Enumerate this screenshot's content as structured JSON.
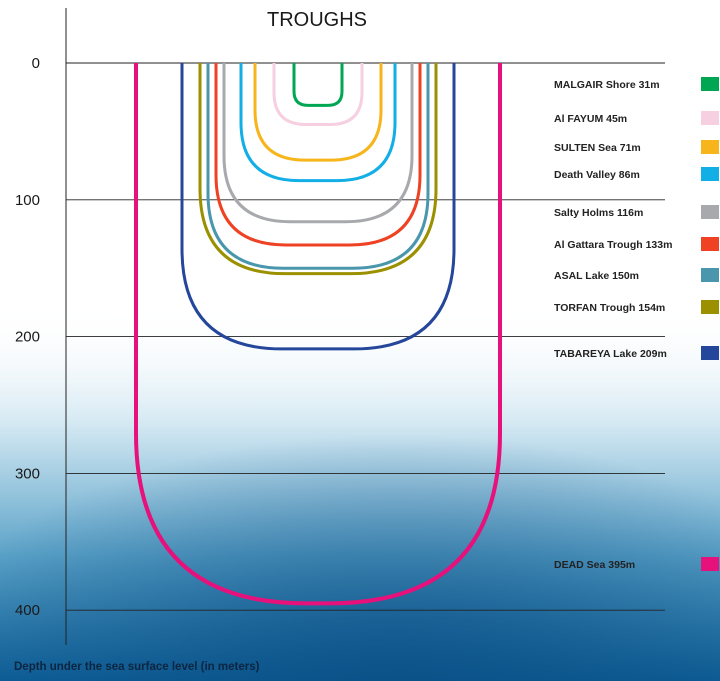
{
  "chart_data": {
    "type": "line",
    "title": "TROUGHS",
    "ylabel": "Depth under the sea surface level (in meters)",
    "y_ticks": [
      "0",
      "100",
      "200",
      "300",
      "400"
    ],
    "ylim": [
      0,
      400
    ],
    "grid": true,
    "legend_position": "right",
    "series": [
      {
        "name": "MALGAIR Shore 31m",
        "value": 31,
        "color": "#00a651"
      },
      {
        "name": "Al FAYUM 45m",
        "value": 45,
        "color": "#f6cfe0"
      },
      {
        "name": "SULTEN Sea 71m",
        "value": 71,
        "color": "#f7b51c"
      },
      {
        "name": "Death Valley 86m",
        "value": 86,
        "color": "#12aee6"
      },
      {
        "name": "Salty Holms 116m",
        "value": 116,
        "color": "#a7a9ac"
      },
      {
        "name": "Al Gattara Trough 133m",
        "value": 133,
        "color": "#ef4123"
      },
      {
        "name": "ASAL Lake 150m",
        "value": 150,
        "color": "#4a97ad"
      },
      {
        "name": "TORFAN Trough 154m",
        "value": 154,
        "color": "#9a9000"
      },
      {
        "name": "TABAREYA Lake 209m",
        "value": 209,
        "color": "#24479b"
      },
      {
        "name": "DEAD Sea 395m",
        "value": 395,
        "color": "#e6117b"
      }
    ]
  }
}
